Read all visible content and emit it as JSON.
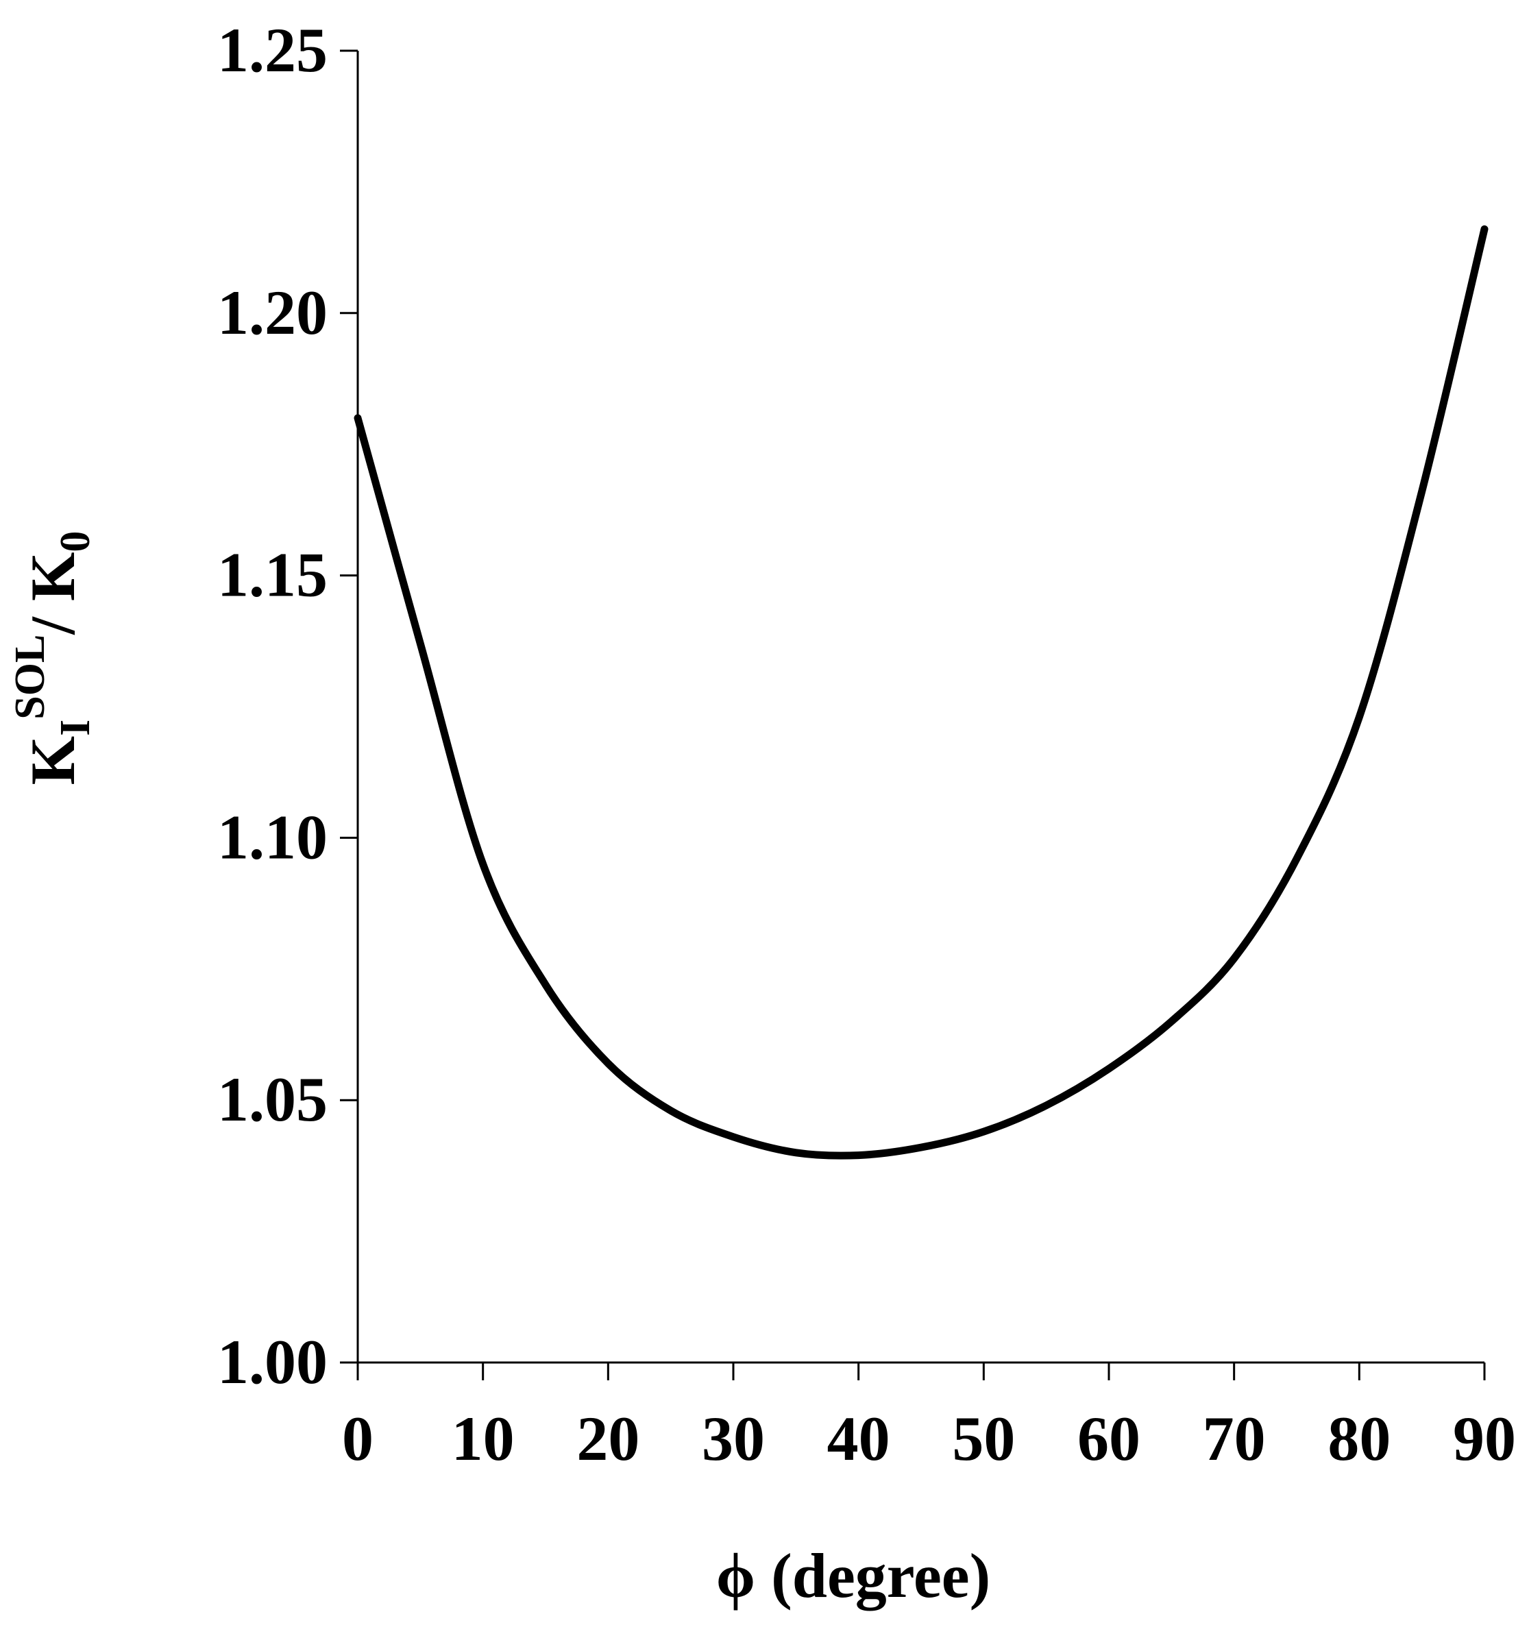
{
  "chart_data": {
    "type": "line",
    "title": "",
    "xlabel": "ϕ (degree)",
    "ylabel": {
      "base": "K",
      "sub": "I",
      "sup": "SOL",
      "slash": "/ K",
      "sub2": "0"
    },
    "xlim": [
      0,
      90
    ],
    "ylim": [
      1.0,
      1.25
    ],
    "x_ticks": [
      "0",
      "10",
      "20",
      "30",
      "40",
      "50",
      "60",
      "70",
      "80",
      "90"
    ],
    "y_ticks": [
      "1.00",
      "1.05",
      "1.10",
      "1.15",
      "1.20",
      "1.25"
    ],
    "x_tick_values": [
      0,
      10,
      20,
      30,
      40,
      50,
      60,
      70,
      80,
      90
    ],
    "y_tick_values": [
      1.0,
      1.05,
      1.1,
      1.15,
      1.2,
      1.25
    ],
    "grid": false,
    "series": [
      {
        "color": "#000000",
        "x": [
          0,
          5,
          10,
          15,
          20,
          25,
          30,
          35,
          40,
          45,
          50,
          55,
          60,
          65,
          70,
          75,
          80,
          85,
          90
        ],
        "y": [
          1.18,
          1.137,
          1.095,
          1.072,
          1.057,
          1.048,
          1.043,
          1.04,
          1.0395,
          1.041,
          1.044,
          1.049,
          1.056,
          1.065,
          1.077,
          1.096,
          1.123,
          1.166,
          1.216
        ]
      }
    ]
  }
}
